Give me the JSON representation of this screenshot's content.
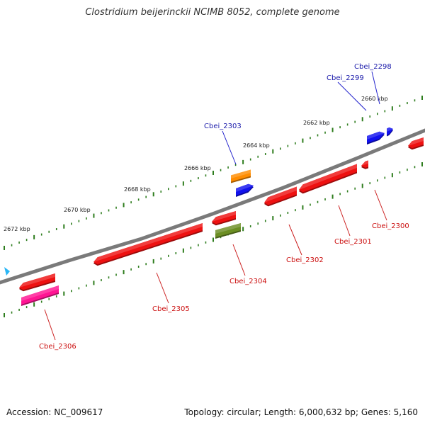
{
  "title": "Clostridium beijerinckii NCIMB 8052, complete genome",
  "footer": {
    "accession": "Accession: NC_009617",
    "summary": "Topology: circular; Length: 6,000,632 bp; Genes: 5,160"
  },
  "colors": {
    "backbone": "#7a7a7a",
    "tick": "#2e7d1e",
    "label_forward": "#1a1aaa",
    "label_reverse": "#cc1111",
    "leader_forward": "#2222cc",
    "leader_reverse": "#cc2222"
  },
  "ticks": [
    "2660 kbp",
    "2662 kbp",
    "2664 kbp",
    "2666 kbp",
    "2668 kbp",
    "2670 kbp",
    "2672 kbp"
  ],
  "genes": [
    {
      "id": "Cbei_2298",
      "strand": "forward",
      "color": "#1111ee"
    },
    {
      "id": "Cbei_2299",
      "strand": "forward",
      "color": "#1111ee"
    },
    {
      "id": "Cbei_2300",
      "strand": "reverse",
      "color": "#ee1111"
    },
    {
      "id": "Cbei_2301",
      "strand": "reverse",
      "color": "#ee1111"
    },
    {
      "id": "Cbei_2302",
      "strand": "reverse",
      "color": "#ee1111"
    },
    {
      "id": "Cbei_2303",
      "strand": "forward",
      "color": "#ff8c00"
    },
    {
      "id": "Cbei_2304",
      "strand": "reverse",
      "color": "#6b8e23"
    },
    {
      "id": "Cbei_2305",
      "strand": "reverse",
      "color": "#ee1111"
    },
    {
      "id": "Cbei_2306",
      "strand": "reverse",
      "color": "#ff1493"
    }
  ]
}
